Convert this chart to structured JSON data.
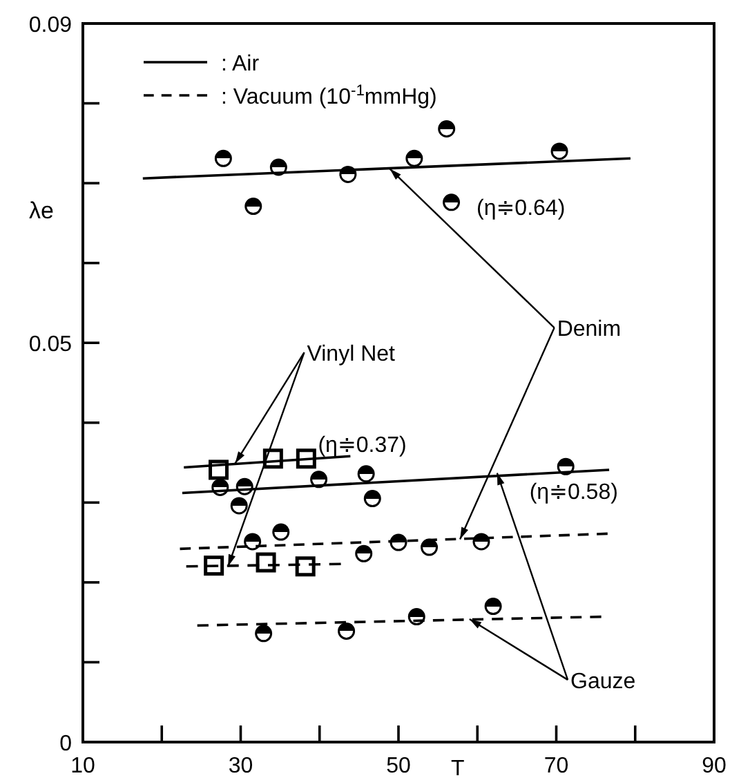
{
  "chart_data": {
    "type": "scatter",
    "xlabel": "T",
    "ylabel": "λe",
    "xlim": [
      10,
      90
    ],
    "ylim": [
      0,
      0.09
    ],
    "xticks": [
      10,
      {
        "value": 20,
        "label": null
      },
      30,
      {
        "value": 40,
        "label": null
      },
      50,
      {
        "value": 60,
        "label": null
      },
      70,
      {
        "value": 80,
        "label": null
      },
      90
    ],
    "yticks": [
      0,
      {
        "value": 0.01,
        "label": null
      },
      {
        "value": 0.02,
        "label": null
      },
      {
        "value": 0.03,
        "label": null
      },
      {
        "value": 0.04,
        "label": null
      },
      0.05,
      {
        "value": 0.06,
        "label": null
      },
      {
        "value": 0.07,
        "label": null
      },
      {
        "value": 0.08,
        "label": null
      },
      {
        "value": 0.09,
        "label": "0.09"
      }
    ],
    "grid": false,
    "legend": "top left",
    "series": [
      {
        "marker": "circle",
        "color": "#000000",
        "x": [
          27.8,
          31.6,
          34.8,
          43.6,
          52.0,
          56.1,
          56.7,
          70.4
        ],
        "values": [
          0.0731,
          0.0671,
          0.072,
          0.0711,
          0.0731,
          0.0768,
          0.0676,
          0.074
        ]
      },
      {
        "type": "line",
        "name": ": Air",
        "line_style": "solid",
        "color": "#000000",
        "x": [
          17.6,
          79.4
        ],
        "values": [
          0.0706,
          0.0731
        ]
      },
      {
        "marker": "square",
        "color": "#000000",
        "x": [
          27.2,
          34.1,
          38.3
        ],
        "values": [
          0.0341,
          0.0355,
          0.0355
        ]
      },
      {
        "type": "line",
        "line_style": "solid",
        "color": "#000000",
        "x": [
          22.8,
          43.9
        ],
        "values": [
          0.0344,
          0.0358
        ]
      },
      {
        "marker": "circle",
        "color": "#000000",
        "x": [
          27.4,
          30.5,
          29.8,
          39.9,
          45.9,
          46.7,
          71.2
        ],
        "values": [
          0.0319,
          0.032,
          0.0296,
          0.0329,
          0.0336,
          0.0305,
          0.0345
        ]
      },
      {
        "type": "line",
        "line_style": "solid",
        "color": "#000000",
        "x": [
          22.6,
          76.7
        ],
        "values": [
          0.0312,
          0.0341
        ]
      },
      {
        "marker": "circle",
        "color": "#000000",
        "x": [
          31.5,
          35.1,
          45.6,
          50.0,
          53.9,
          60.5
        ],
        "values": [
          0.0251,
          0.0263,
          0.0236,
          0.025,
          0.0244,
          0.0251
        ]
      },
      {
        "type": "line",
        "name": ": Vacuum (10$^{-1}$mmHg)",
        "line_style": "dashed",
        "color": "#000000",
        "x": [
          22.3,
          76.5
        ],
        "values": [
          0.0242,
          0.0261
        ]
      },
      {
        "marker": "square",
        "color": "#000000",
        "x": [
          26.6,
          33.2,
          38.2
        ],
        "values": [
          0.0221,
          0.0225,
          0.022
        ]
      },
      {
        "type": "line",
        "line_style": "dashed",
        "color": "#000000",
        "x": [
          23.1,
          42.7
        ],
        "values": [
          0.022,
          0.0223
        ]
      },
      {
        "marker": "circle",
        "color": "#000000",
        "x": [
          32.9,
          43.4,
          52.3,
          62.0
        ],
        "values": [
          0.0136,
          0.0139,
          0.0157,
          0.017
        ]
      },
      {
        "type": "line",
        "line_style": "dashed",
        "color": "#000000",
        "x": [
          24.5,
          75.7
        ],
        "values": [
          0.0146,
          0.0157
        ]
      }
    ],
    "annotations": [
      "(η≑0.64)",
      {
        "text": "Denim",
        "x": 48.9,
        "y": 0.0718
      },
      {
        "text": "Vinyl Net",
        "x": 29.3,
        "y": 0.0349
      },
      "(η≑0.37)",
      "(η≑0.58)",
      {
        "text": "Gauze",
        "x": 62.5,
        "y": 0.0337
      }
    ]
  }
}
